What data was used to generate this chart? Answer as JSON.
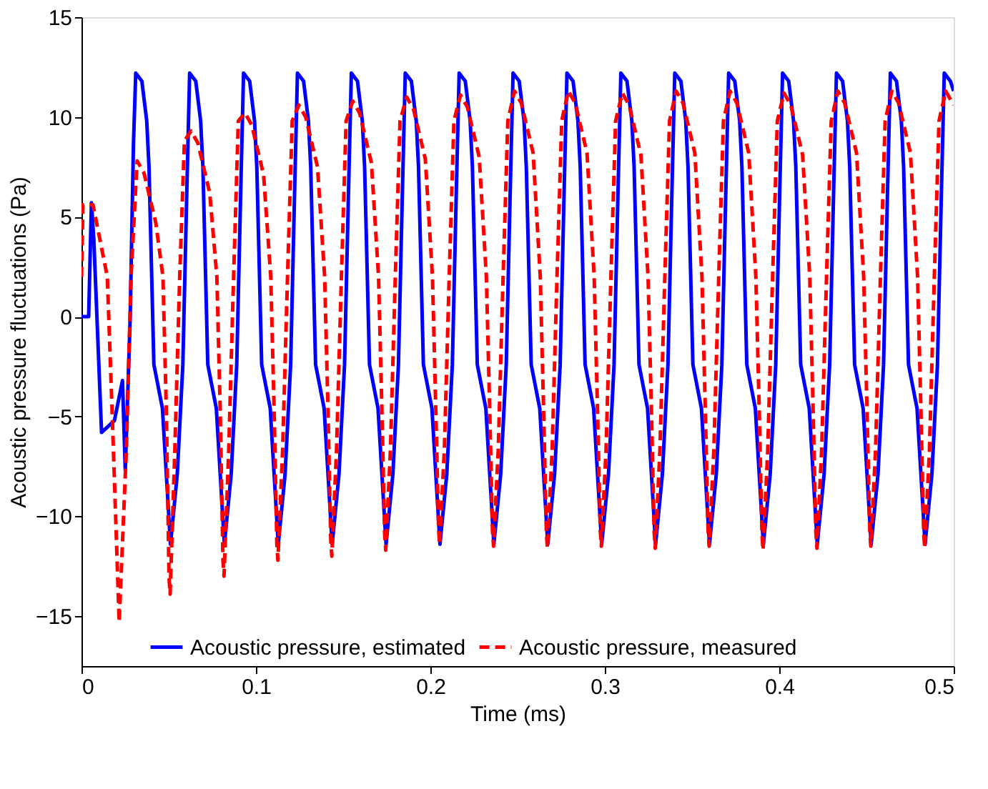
{
  "chart_data": {
    "type": "line",
    "xlabel": "Time (ms)",
    "ylabel": "Acoustic pressure fluctuations (Pa)",
    "xlim": [
      0,
      0.5
    ],
    "xticks": [
      0,
      0.1,
      0.2,
      0.3,
      0.4,
      0.5
    ],
    "ylim": [
      -17.5,
      15
    ],
    "yticks": [
      -15,
      -10,
      -5,
      0,
      5,
      10,
      15
    ],
    "grid": false,
    "legend": "bottom",
    "marker": "none",
    "series": [
      {
        "name": "Acoustic pressure, estimated",
        "color": "#0000ff",
        "line_style": "solid",
        "x": [
          0,
          0.0041,
          0.0057,
          0.0071,
          0.0115,
          0.0189,
          0.0235,
          0.0251,
          0.0279,
          0.0298,
          0.0311,
          0.0346,
          0.0374,
          0.0387,
          0.0415,
          0.0464,
          0.051,
          0.0549,
          0.0581,
          0.0603,
          0.062,
          0.0655,
          0.0683,
          0.0696,
          0.0724,
          0.0773,
          0.0819,
          0.0858,
          0.089,
          0.0912,
          0.0929,
          0.0964,
          0.0992,
          0.1005,
          0.1033,
          0.1082,
          0.1128,
          0.1167,
          0.1199,
          0.1221,
          0.1238,
          0.1273,
          0.1301,
          0.1314,
          0.1342,
          0.1391,
          0.1437,
          0.1476,
          0.1508,
          0.153,
          0.1547,
          0.1582,
          0.161,
          0.1623,
          0.1651,
          0.17,
          0.1746,
          0.1785,
          0.1817,
          0.1839,
          0.1856,
          0.1891,
          0.1919,
          0.1932,
          0.196,
          0.2009,
          0.2055,
          0.2094,
          0.2126,
          0.2148,
          0.2165,
          0.22,
          0.2228,
          0.2241,
          0.2269,
          0.2318,
          0.2364,
          0.2403,
          0.2435,
          0.2457,
          0.2474,
          0.2509,
          0.2537,
          0.255,
          0.2578,
          0.2627,
          0.2673,
          0.2712,
          0.2744,
          0.2766,
          0.2783,
          0.2818,
          0.2846,
          0.2859,
          0.2887,
          0.2936,
          0.2982,
          0.3021,
          0.3053,
          0.3075,
          0.3092,
          0.3127,
          0.3155,
          0.3168,
          0.3196,
          0.3245,
          0.3291,
          0.333,
          0.3362,
          0.3384,
          0.3401,
          0.3436,
          0.3464,
          0.3477,
          0.3505,
          0.3554,
          0.36,
          0.3639,
          0.3671,
          0.3693,
          0.371,
          0.3745,
          0.3773,
          0.3786,
          0.3814,
          0.3863,
          0.3909,
          0.3948,
          0.398,
          0.4002,
          0.4019,
          0.4054,
          0.4082,
          0.4095,
          0.4123,
          0.4172,
          0.4218,
          0.4257,
          0.4289,
          0.4311,
          0.4328,
          0.4363,
          0.4391,
          0.4404,
          0.4432,
          0.4481,
          0.4527,
          0.4566,
          0.4598,
          0.462,
          0.4637,
          0.4672,
          0.47,
          0.4713,
          0.4741,
          0.479,
          0.4836,
          0.4875,
          0.4907,
          0.4929,
          0.4946,
          0.4981,
          0.5
        ],
        "values": [
          0,
          0,
          5.7,
          3.8,
          -5.8,
          -5.2,
          -3.2,
          -7.7,
          -0.1,
          8.7,
          12.2,
          11.8,
          9.8,
          7.5,
          -2.4,
          -4.6,
          -11.4,
          -7.9,
          -2.4,
          6.0,
          12.2,
          11.8,
          9.8,
          7.5,
          -2.4,
          -4.6,
          -11.4,
          -7.9,
          -2.4,
          6.0,
          12.2,
          11.8,
          9.8,
          7.5,
          -2.4,
          -4.6,
          -11.4,
          -7.9,
          -2.4,
          6.0,
          12.2,
          11.8,
          9.8,
          7.5,
          -2.4,
          -4.6,
          -11.4,
          -7.9,
          -2.4,
          6.0,
          12.2,
          11.8,
          9.8,
          7.5,
          -2.4,
          -4.6,
          -11.4,
          -7.9,
          -2.4,
          6.0,
          12.2,
          11.8,
          9.8,
          7.5,
          -2.4,
          -4.6,
          -11.4,
          -7.9,
          -2.4,
          6.0,
          12.2,
          11.8,
          9.8,
          7.5,
          -2.4,
          -4.6,
          -11.4,
          -7.9,
          -2.4,
          6.0,
          12.2,
          11.8,
          9.8,
          7.5,
          -2.4,
          -4.6,
          -11.4,
          -7.9,
          -2.4,
          6.0,
          12.2,
          11.8,
          9.8,
          7.5,
          -2.4,
          -4.6,
          -11.4,
          -7.9,
          -2.4,
          6.0,
          12.2,
          11.8,
          9.8,
          7.5,
          -2.4,
          -4.6,
          -11.4,
          -7.9,
          -2.4,
          6.0,
          12.2,
          11.8,
          9.8,
          7.5,
          -2.4,
          -4.6,
          -11.4,
          -7.9,
          -2.4,
          6.0,
          12.2,
          11.8,
          9.8,
          7.5,
          -2.4,
          -4.6,
          -11.4,
          -7.9,
          -2.4,
          6.0,
          12.2,
          11.8,
          9.8,
          7.5,
          -2.4,
          -4.6,
          -11.4,
          -7.9,
          -2.4,
          6.0,
          12.2,
          11.8,
          9.8,
          7.5,
          -2.4,
          -4.6,
          -11.4,
          -7.9,
          -2.4,
          6.0,
          12.2,
          11.8,
          9.8,
          7.5,
          -2.4,
          -4.6,
          -11.4,
          -7.9,
          -2.4,
          6.0,
          12.2,
          11.8,
          11.3
        ]
      },
      {
        "name": "Acoustic pressure, measured",
        "color": "#ff0000",
        "line_style": "dashed",
        "x": [
          0,
          0.0008,
          0.0066,
          0.0148,
          0.0175,
          0.0216,
          0.0257,
          0.0284,
          0.0319,
          0.0358,
          0.0426,
          0.0467,
          0.0486,
          0.0502,
          0.0508,
          0.0535,
          0.0563,
          0.059,
          0.0628,
          0.0667,
          0.0735,
          0.0776,
          0.0795,
          0.0811,
          0.0817,
          0.0844,
          0.0872,
          0.0899,
          0.0937,
          0.0976,
          0.1044,
          0.1085,
          0.1104,
          0.112,
          0.1126,
          0.1153,
          0.1181,
          0.1208,
          0.1246,
          0.1285,
          0.1353,
          0.1394,
          0.1413,
          0.1429,
          0.1435,
          0.1462,
          0.149,
          0.1517,
          0.1555,
          0.1594,
          0.1662,
          0.1703,
          0.1722,
          0.1738,
          0.1744,
          0.1771,
          0.1799,
          0.1826,
          0.1864,
          0.1903,
          0.1971,
          0.2012,
          0.2031,
          0.2047,
          0.2053,
          0.208,
          0.2108,
          0.2135,
          0.2173,
          0.2212,
          0.228,
          0.2321,
          0.234,
          0.2356,
          0.2362,
          0.2389,
          0.2417,
          0.2444,
          0.2482,
          0.2521,
          0.2589,
          0.263,
          0.2649,
          0.2665,
          0.2671,
          0.2698,
          0.2726,
          0.2753,
          0.2791,
          0.283,
          0.2898,
          0.2939,
          0.2958,
          0.2974,
          0.298,
          0.3007,
          0.3035,
          0.3062,
          0.31,
          0.3139,
          0.3207,
          0.3248,
          0.3267,
          0.3283,
          0.3289,
          0.3316,
          0.3344,
          0.3371,
          0.3409,
          0.3448,
          0.3516,
          0.3557,
          0.3576,
          0.3592,
          0.3598,
          0.3625,
          0.3653,
          0.368,
          0.3718,
          0.3757,
          0.3825,
          0.3866,
          0.3885,
          0.3901,
          0.3907,
          0.3934,
          0.3962,
          0.3989,
          0.4027,
          0.4066,
          0.4134,
          0.4175,
          0.4194,
          0.421,
          0.4216,
          0.4243,
          0.4271,
          0.4298,
          0.4336,
          0.4375,
          0.4443,
          0.4484,
          0.4503,
          0.4519,
          0.4525,
          0.4552,
          0.458,
          0.4607,
          0.4645,
          0.4684,
          0.4752,
          0.4793,
          0.4812,
          0.4828,
          0.4834,
          0.4861,
          0.4889,
          0.4916,
          0.4954,
          0.4993,
          0.5
        ],
        "values": [
          2.0,
          5.6,
          5.6,
          2.0,
          -4.6,
          -15.3,
          -6.7,
          2.0,
          7.8,
          7.2,
          4.7,
          2.0,
          -4.6,
          -13.1,
          -13.9,
          -6.7,
          2.0,
          8.8,
          9.3,
          8.7,
          6.2,
          2.0,
          -4.6,
          -12.2,
          -13.0,
          -6.7,
          2.0,
          9.8,
          10.2,
          9.6,
          7.1,
          2.0,
          -4.6,
          -11.4,
          -12.2,
          -6.7,
          2.0,
          9.8,
          10.6,
          10.0,
          7.5,
          2.0,
          -4.6,
          -11.2,
          -12.0,
          -6.7,
          2.0,
          9.8,
          10.8,
          10.2,
          7.7,
          2.0,
          -4.6,
          -10.9,
          -11.7,
          -6.7,
          2.0,
          9.8,
          11.0,
          10.4,
          7.9,
          2.0,
          -4.6,
          -10.6,
          -11.4,
          -6.7,
          2.0,
          9.8,
          11.1,
          10.5,
          8.0,
          2.0,
          -4.6,
          -10.7,
          -11.5,
          -6.7,
          2.0,
          9.8,
          11.3,
          10.7,
          8.2,
          2.0,
          -4.6,
          -10.8,
          -11.6,
          -6.7,
          2.0,
          9.8,
          11.3,
          10.7,
          8.2,
          2.0,
          -4.6,
          -10.7,
          -11.5,
          -6.7,
          2.0,
          9.8,
          11.2,
          10.6,
          8.1,
          2.0,
          -4.6,
          -10.8,
          -11.6,
          -6.7,
          2.0,
          9.8,
          11.3,
          10.7,
          8.2,
          2.0,
          -4.6,
          -10.7,
          -11.5,
          -6.7,
          2.0,
          9.8,
          11.3,
          10.7,
          8.2,
          2.0,
          -4.6,
          -10.9,
          -11.7,
          -6.7,
          2.0,
          9.8,
          11.2,
          10.6,
          8.1,
          2.0,
          -4.6,
          -10.8,
          -11.6,
          -6.7,
          2.0,
          9.8,
          11.3,
          10.7,
          8.2,
          2.0,
          -4.6,
          -10.7,
          -11.5,
          -6.7,
          2.0,
          9.8,
          11.3,
          10.7,
          8.2,
          2.0,
          -4.6,
          -10.8,
          -11.6,
          -6.7,
          2.0,
          9.8,
          11.3,
          10.7,
          10.6
        ]
      }
    ]
  }
}
